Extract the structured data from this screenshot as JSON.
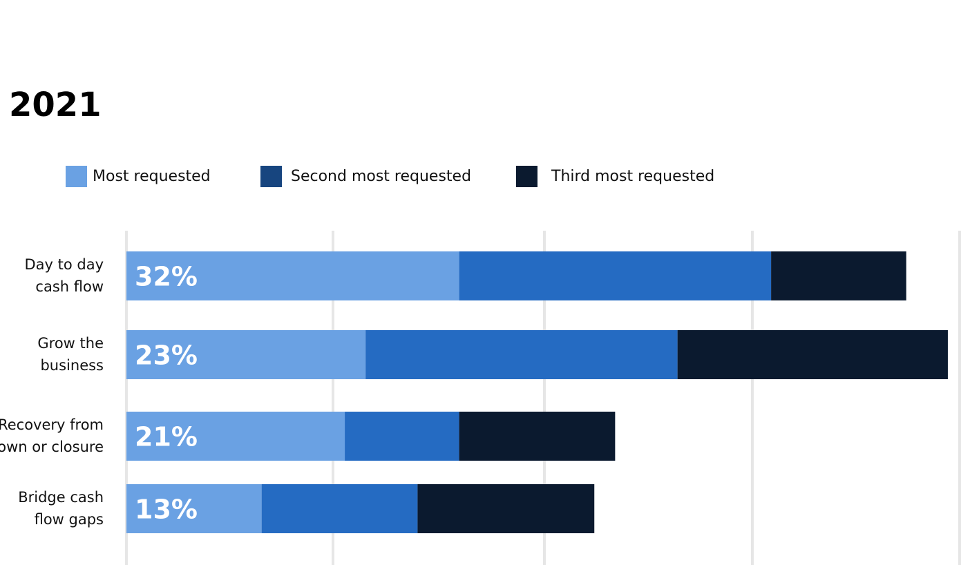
{
  "colors": {
    "most": "#6aa1e3",
    "second": "#256bc2",
    "third": "#0b1a2f",
    "legend_second": "#17457f",
    "legend_third": "#0b1a2f",
    "grid": "#e6e6e6"
  },
  "chart_data": {
    "type": "bar",
    "orientation": "horizontal",
    "stacked": true,
    "title": "2021",
    "legend_position": "top-left",
    "grid": "vertical",
    "xlim": [
      0,
      100
    ],
    "categories": [
      [
        "Day to day",
        "cash flow"
      ],
      [
        "Grow the",
        "business"
      ],
      [
        "Recovery from",
        "own or closure"
      ],
      [
        "Bridge cash",
        "flow gaps"
      ]
    ],
    "series": [
      {
        "name": "Most requested",
        "values": [
          32,
          23,
          21,
          13
        ]
      },
      {
        "name": "Second most requested",
        "values": [
          30,
          30,
          11,
          15
        ]
      },
      {
        "name": "Third most requested",
        "values": [
          13,
          26,
          15,
          17
        ]
      }
    ],
    "data_labels": [
      "32%",
      "23%",
      "21%",
      "13%"
    ]
  }
}
